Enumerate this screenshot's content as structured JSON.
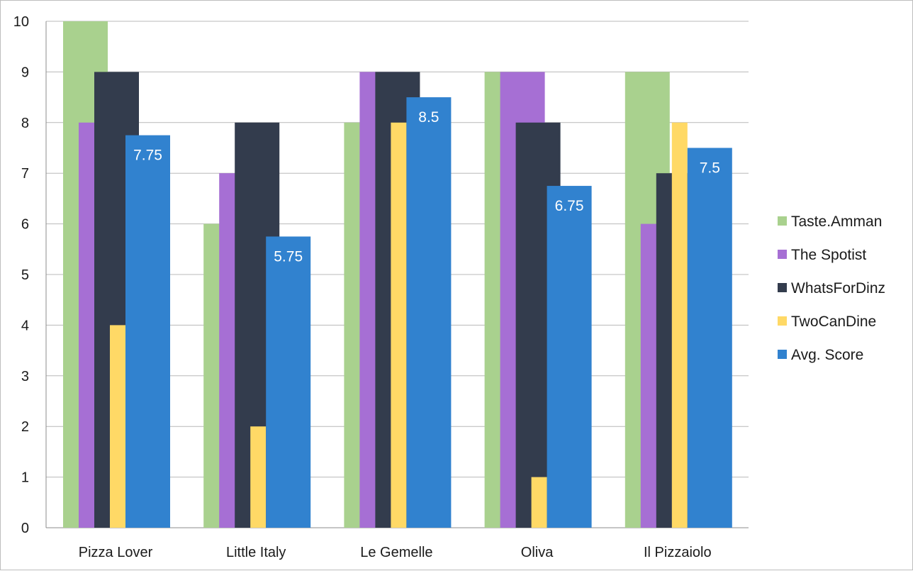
{
  "chart_data": {
    "type": "bar",
    "title": "",
    "xlabel": "",
    "ylabel": "",
    "ylim": [
      0,
      10
    ],
    "yticks": [
      0,
      1,
      2,
      3,
      4,
      5,
      6,
      7,
      8,
      9,
      10
    ],
    "grid": true,
    "legend_position": "right",
    "categories": [
      "Pizza Lover",
      "Little Italy",
      "Le Gemelle",
      "Oliva",
      "Il Pizzaiolo"
    ],
    "series": [
      {
        "name": "Taste.Amman",
        "color": "#a9d18e",
        "values": [
          10,
          6,
          8,
          9,
          9
        ]
      },
      {
        "name": "The Spotist",
        "color": "#a66fd4",
        "values": [
          8,
          7,
          9,
          9,
          6
        ]
      },
      {
        "name": "WhatsForDinz",
        "color": "#333c4d",
        "values": [
          9,
          8,
          9,
          8,
          7
        ]
      },
      {
        "name": "TwoCanDine",
        "color": "#ffd966",
        "values": [
          4,
          2,
          8,
          1,
          8
        ]
      },
      {
        "name": "Avg. Score",
        "color": "#3182cf",
        "values": [
          7.75,
          5.75,
          8.5,
          6.75,
          7.5
        ],
        "data_labels": [
          "7.75",
          "5.75",
          "8.5",
          "6.75",
          "7.5"
        ]
      }
    ]
  }
}
